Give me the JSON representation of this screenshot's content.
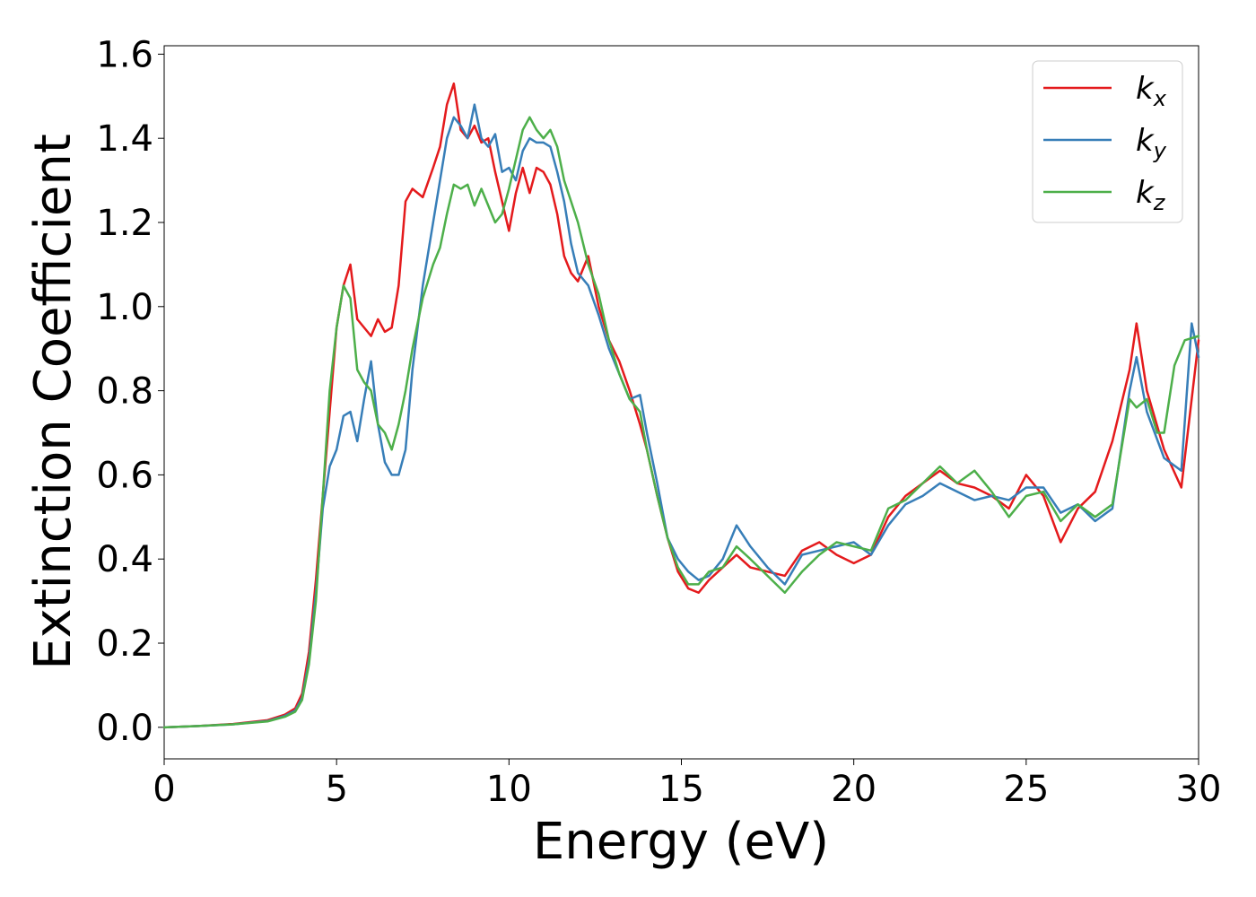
{
  "chart_data": {
    "type": "line",
    "title": "",
    "xlabel": "Energy (eV)",
    "ylabel": "Extinction Coefficient",
    "xlim": [
      0,
      30
    ],
    "ylim": [
      -0.075,
      1.62
    ],
    "xticks": [
      0,
      5,
      10,
      15,
      20,
      25,
      30
    ],
    "xtick_labels": [
      "0",
      "5",
      "10",
      "15",
      "20",
      "25",
      "30"
    ],
    "yticks": [
      0.0,
      0.2,
      0.4,
      0.6,
      0.8,
      1.0,
      1.2,
      1.4,
      1.6
    ],
    "ytick_labels": [
      "0.0",
      "0.2",
      "0.4",
      "0.6",
      "0.8",
      "1.0",
      "1.2",
      "1.4",
      "1.6"
    ],
    "grid": false,
    "legend_position": "top-right",
    "series": [
      {
        "name": "k_x",
        "label_base": "k",
        "label_sub": "x",
        "color": "#e41a1c",
        "x": [
          0,
          1,
          2,
          3,
          3.5,
          3.8,
          4.0,
          4.2,
          4.4,
          4.6,
          4.8,
          5.0,
          5.2,
          5.4,
          5.6,
          5.8,
          6.0,
          6.2,
          6.4,
          6.6,
          6.8,
          7.0,
          7.2,
          7.5,
          7.8,
          8.0,
          8.2,
          8.4,
          8.6,
          8.8,
          9.0,
          9.2,
          9.4,
          9.6,
          9.8,
          10.0,
          10.2,
          10.4,
          10.6,
          10.8,
          11.0,
          11.2,
          11.4,
          11.6,
          11.8,
          12.0,
          12.3,
          12.6,
          12.9,
          13.2,
          13.5,
          13.8,
          14.0,
          14.3,
          14.6,
          14.9,
          15.2,
          15.5,
          15.8,
          16.2,
          16.6,
          17.0,
          17.5,
          18.0,
          18.5,
          19.0,
          19.5,
          20.0,
          20.5,
          21.0,
          21.5,
          22.0,
          22.5,
          23.0,
          23.5,
          24.0,
          24.5,
          25.0,
          25.5,
          26.0,
          26.5,
          27.0,
          27.5,
          28.0,
          28.2,
          28.5,
          29.0,
          29.5,
          30.0
        ],
        "values": [
          0.0,
          0.003,
          0.008,
          0.017,
          0.03,
          0.045,
          0.08,
          0.18,
          0.35,
          0.55,
          0.75,
          0.95,
          1.05,
          1.1,
          0.97,
          0.95,
          0.93,
          0.97,
          0.94,
          0.95,
          1.05,
          1.25,
          1.28,
          1.26,
          1.33,
          1.38,
          1.48,
          1.53,
          1.42,
          1.4,
          1.43,
          1.39,
          1.4,
          1.32,
          1.25,
          1.18,
          1.27,
          1.33,
          1.27,
          1.33,
          1.32,
          1.29,
          1.22,
          1.12,
          1.08,
          1.06,
          1.12,
          1.0,
          0.92,
          0.87,
          0.8,
          0.72,
          0.66,
          0.55,
          0.45,
          0.37,
          0.33,
          0.32,
          0.35,
          0.38,
          0.41,
          0.38,
          0.37,
          0.36,
          0.42,
          0.44,
          0.41,
          0.39,
          0.41,
          0.5,
          0.55,
          0.58,
          0.61,
          0.58,
          0.57,
          0.55,
          0.52,
          0.6,
          0.55,
          0.44,
          0.52,
          0.56,
          0.68,
          0.85,
          0.96,
          0.8,
          0.66,
          0.57,
          0.92
        ]
      },
      {
        "name": "k_y",
        "label_base": "k",
        "label_sub": "y",
        "color": "#377eb8",
        "x": [
          0,
          1,
          2,
          3,
          3.5,
          3.8,
          4.0,
          4.2,
          4.4,
          4.6,
          4.8,
          5.0,
          5.2,
          5.4,
          5.6,
          5.8,
          6.0,
          6.2,
          6.4,
          6.6,
          6.8,
          7.0,
          7.2,
          7.5,
          7.8,
          8.0,
          8.2,
          8.4,
          8.6,
          8.8,
          9.0,
          9.2,
          9.4,
          9.6,
          9.8,
          10.0,
          10.2,
          10.4,
          10.6,
          10.8,
          11.0,
          11.2,
          11.4,
          11.6,
          11.8,
          12.0,
          12.3,
          12.6,
          12.9,
          13.2,
          13.5,
          13.8,
          14.0,
          14.3,
          14.6,
          14.9,
          15.2,
          15.5,
          15.8,
          16.2,
          16.6,
          17.0,
          17.5,
          18.0,
          18.5,
          19.0,
          19.5,
          20.0,
          20.5,
          21.0,
          21.5,
          22.0,
          22.5,
          23.0,
          23.5,
          24.0,
          24.5,
          25.0,
          25.5,
          26.0,
          26.5,
          27.0,
          27.5,
          28.0,
          28.2,
          28.5,
          29.0,
          29.5,
          29.8,
          30.0
        ],
        "values": [
          0.0,
          0.003,
          0.007,
          0.015,
          0.027,
          0.04,
          0.07,
          0.16,
          0.32,
          0.52,
          0.62,
          0.66,
          0.74,
          0.75,
          0.68,
          0.78,
          0.87,
          0.72,
          0.63,
          0.6,
          0.6,
          0.66,
          0.85,
          1.05,
          1.2,
          1.3,
          1.4,
          1.45,
          1.43,
          1.4,
          1.48,
          1.4,
          1.38,
          1.41,
          1.32,
          1.33,
          1.3,
          1.37,
          1.4,
          1.39,
          1.39,
          1.38,
          1.32,
          1.25,
          1.15,
          1.08,
          1.05,
          0.98,
          0.9,
          0.84,
          0.78,
          0.79,
          0.7,
          0.58,
          0.45,
          0.4,
          0.37,
          0.35,
          0.36,
          0.4,
          0.48,
          0.43,
          0.38,
          0.34,
          0.41,
          0.42,
          0.43,
          0.44,
          0.41,
          0.48,
          0.53,
          0.55,
          0.58,
          0.56,
          0.54,
          0.55,
          0.54,
          0.57,
          0.57,
          0.51,
          0.53,
          0.49,
          0.52,
          0.8,
          0.88,
          0.75,
          0.64,
          0.61,
          0.96,
          0.88
        ]
      },
      {
        "name": "k_z",
        "label_base": "k",
        "label_sub": "z",
        "color": "#4daf4a",
        "x": [
          0,
          1,
          2,
          3,
          3.5,
          3.8,
          4.0,
          4.2,
          4.4,
          4.6,
          4.8,
          5.0,
          5.2,
          5.4,
          5.6,
          5.8,
          6.0,
          6.2,
          6.4,
          6.6,
          6.8,
          7.0,
          7.2,
          7.5,
          7.8,
          8.0,
          8.2,
          8.4,
          8.6,
          8.8,
          9.0,
          9.2,
          9.4,
          9.6,
          9.8,
          10.0,
          10.2,
          10.4,
          10.6,
          10.8,
          11.0,
          11.2,
          11.4,
          11.6,
          11.8,
          12.0,
          12.3,
          12.6,
          12.9,
          13.2,
          13.5,
          13.8,
          14.0,
          14.3,
          14.6,
          14.9,
          15.2,
          15.5,
          15.8,
          16.2,
          16.6,
          17.0,
          17.5,
          18.0,
          18.5,
          19.0,
          19.5,
          20.0,
          20.5,
          21.0,
          21.5,
          22.0,
          22.5,
          23.0,
          23.5,
          24.0,
          24.5,
          25.0,
          25.5,
          26.0,
          26.5,
          27.0,
          27.5,
          28.0,
          28.2,
          28.5,
          28.8,
          29.0,
          29.3,
          29.6,
          30.0
        ],
        "values": [
          0.0,
          0.003,
          0.007,
          0.014,
          0.025,
          0.037,
          0.065,
          0.15,
          0.3,
          0.55,
          0.8,
          0.95,
          1.05,
          1.02,
          0.85,
          0.82,
          0.8,
          0.72,
          0.7,
          0.66,
          0.72,
          0.8,
          0.9,
          1.02,
          1.1,
          1.14,
          1.22,
          1.29,
          1.28,
          1.29,
          1.24,
          1.28,
          1.24,
          1.2,
          1.22,
          1.28,
          1.35,
          1.42,
          1.45,
          1.42,
          1.4,
          1.42,
          1.38,
          1.3,
          1.25,
          1.2,
          1.1,
          1.03,
          0.92,
          0.84,
          0.78,
          0.75,
          0.66,
          0.55,
          0.45,
          0.38,
          0.34,
          0.34,
          0.37,
          0.38,
          0.43,
          0.4,
          0.36,
          0.32,
          0.37,
          0.41,
          0.44,
          0.43,
          0.42,
          0.52,
          0.54,
          0.58,
          0.62,
          0.58,
          0.61,
          0.56,
          0.5,
          0.55,
          0.56,
          0.49,
          0.53,
          0.5,
          0.53,
          0.78,
          0.76,
          0.78,
          0.7,
          0.7,
          0.86,
          0.92,
          0.93
        ]
      }
    ]
  }
}
